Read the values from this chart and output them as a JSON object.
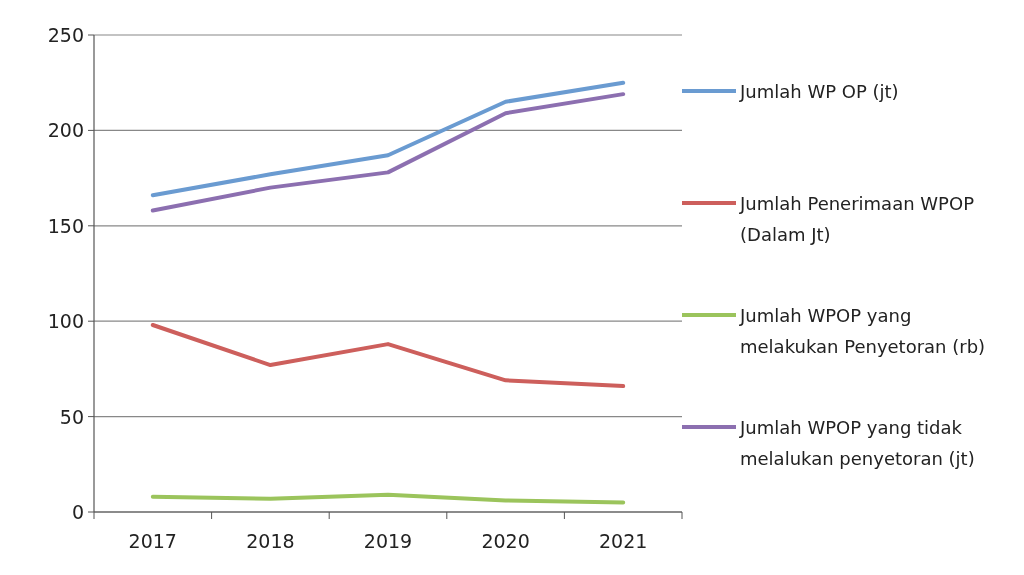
{
  "chart_data": {
    "type": "line",
    "categories": [
      "2017",
      "2018",
      "2019",
      "2020",
      "2021"
    ],
    "series": [
      {
        "name": "Jumlah WP OP (jt)",
        "color": "#6a9bd1",
        "values": [
          166,
          177,
          187,
          215,
          225
        ]
      },
      {
        "name": "Jumlah Penerimaan WPOP (Dalam Jt)",
        "color": "#cd5f5c",
        "values": [
          98,
          77,
          88,
          69,
          66
        ]
      },
      {
        "name": "Jumlah WPOP yang melakukan Penyetoran (rb)",
        "color": "#9bc45c",
        "values": [
          8,
          7,
          9,
          6,
          5
        ]
      },
      {
        "name": "Jumlah WPOP yang tidak melalukan penyetoran (jt)",
        "color": "#8c6fb0",
        "values": [
          158,
          170,
          178,
          209,
          219
        ]
      }
    ],
    "ylim": [
      0,
      250
    ],
    "yticks": [
      0,
      50,
      100,
      150,
      200,
      250
    ],
    "grid": "y",
    "legend": "right",
    "marker": "none",
    "line_style": "solid"
  }
}
